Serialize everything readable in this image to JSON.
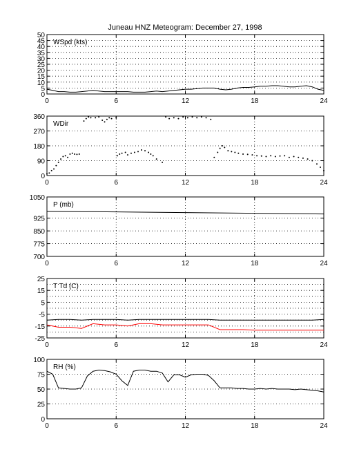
{
  "title": "Juneau HNZ Meteogram:   December 27, 1998",
  "chart_data": [
    {
      "type": "line",
      "label": "WSpd (kts)",
      "x": [
        0,
        0.5,
        1,
        1.5,
        2,
        2.5,
        3,
        3.5,
        4,
        4.5,
        5,
        5.5,
        6,
        6.5,
        7,
        7.5,
        8,
        8.5,
        9,
        9.5,
        10,
        10.5,
        11,
        11.5,
        12,
        12.5,
        13,
        13.5,
        14,
        14.5,
        15,
        15.5,
        16,
        16.5,
        17,
        17.5,
        18,
        18.5,
        19,
        19.5,
        20,
        20.5,
        21,
        21.5,
        22,
        22.5,
        23,
        23.5,
        24
      ],
      "series": [
        {
          "values": [
            4,
            3,
            2,
            2,
            1.5,
            1.5,
            2,
            2.5,
            3,
            2.5,
            2,
            2,
            2,
            2,
            2,
            1.5,
            1.5,
            1.5,
            2,
            2.5,
            2,
            2.5,
            3,
            3.5,
            4,
            4,
            4.5,
            5,
            5,
            5,
            4,
            3.5,
            4,
            5,
            5.5,
            5.5,
            6,
            6.5,
            6.5,
            7,
            7,
            6.5,
            6,
            6,
            6.5,
            7,
            6,
            4,
            3
          ],
          "color": "#000000"
        }
      ],
      "ylim": [
        0,
        50
      ],
      "xlim": [
        0,
        24
      ],
      "yticks": [
        0,
        5,
        10,
        15,
        20,
        25,
        30,
        35,
        40,
        45,
        50
      ],
      "xticks": [
        0,
        6,
        12,
        18,
        24
      ],
      "grid": true
    },
    {
      "type": "scatter",
      "label": "WDir",
      "series": [
        {
          "points": [
            [
              0,
              10
            ],
            [
              0.2,
              15
            ],
            [
              0.4,
              30
            ],
            [
              0.6,
              40
            ],
            [
              0.8,
              60
            ],
            [
              1,
              80
            ],
            [
              1.2,
              100
            ],
            [
              1.4,
              115
            ],
            [
              1.6,
              120
            ],
            [
              1.8,
              110
            ],
            [
              2,
              130
            ],
            [
              2.2,
              135
            ],
            [
              2.4,
              130
            ],
            [
              2.6,
              128
            ],
            [
              2.8,
              130
            ],
            [
              3.2,
              330
            ],
            [
              3.4,
              345
            ],
            [
              3.6,
              355
            ],
            [
              3.8,
              350
            ],
            [
              4.2,
              350
            ],
            [
              4.5,
              355
            ],
            [
              4.8,
              335
            ],
            [
              5,
              325
            ],
            [
              5.2,
              340
            ],
            [
              5.4,
              350
            ],
            [
              5.6,
              345
            ],
            [
              6,
              350
            ],
            [
              6.1,
              120
            ],
            [
              6.3,
              130
            ],
            [
              6.5,
              135
            ],
            [
              6.8,
              140
            ],
            [
              7,
              125
            ],
            [
              7.3,
              135
            ],
            [
              7.6,
              140
            ],
            [
              7.9,
              145
            ],
            [
              8.2,
              155
            ],
            [
              8.5,
              150
            ],
            [
              8.8,
              140
            ],
            [
              9,
              130
            ],
            [
              9.2,
              120
            ],
            [
              9.5,
              100
            ],
            [
              10,
              80
            ],
            [
              10.3,
              355
            ],
            [
              10.6,
              345
            ],
            [
              11,
              350
            ],
            [
              11.4,
              345
            ],
            [
              11.8,
              355
            ],
            [
              12.2,
              350
            ],
            [
              12.6,
              355
            ],
            [
              13,
              350
            ],
            [
              13.4,
              355
            ],
            [
              13.8,
              350
            ],
            [
              14.2,
              340
            ],
            [
              14.5,
              110
            ],
            [
              14.8,
              140
            ],
            [
              15,
              165
            ],
            [
              15.2,
              180
            ],
            [
              15.4,
              170
            ],
            [
              15.7,
              150
            ],
            [
              16,
              145
            ],
            [
              16.3,
              140
            ],
            [
              16.6,
              135
            ],
            [
              17,
              130
            ],
            [
              17.4,
              128
            ],
            [
              17.8,
              125
            ],
            [
              18.2,
              120
            ],
            [
              18.6,
              118
            ],
            [
              19,
              115
            ],
            [
              19.4,
              120
            ],
            [
              19.8,
              115
            ],
            [
              20.2,
              118
            ],
            [
              20.6,
              120
            ],
            [
              21,
              110
            ],
            [
              21.4,
              115
            ],
            [
              21.8,
              110
            ],
            [
              22.2,
              105
            ],
            [
              22.6,
              100
            ],
            [
              23,
              90
            ],
            [
              23.4,
              70
            ],
            [
              23.7,
              50
            ],
            [
              24,
              30
            ]
          ],
          "color": "#000000"
        }
      ],
      "ylim": [
        0,
        360
      ],
      "xlim": [
        0,
        24
      ],
      "yticks": [
        0,
        90,
        180,
        270,
        360
      ],
      "xticks": [
        0,
        6,
        12,
        18,
        24
      ],
      "grid": true
    },
    {
      "type": "line",
      "label": "P (mb)",
      "x": [
        0,
        6,
        12,
        18,
        24
      ],
      "series": [
        {
          "values": [
            965,
            962,
            958,
            954,
            950
          ],
          "color": "#000000"
        }
      ],
      "ylim": [
        700,
        1050
      ],
      "xlim": [
        0,
        24
      ],
      "yticks": [
        700,
        775,
        850,
        925,
        1050
      ],
      "xticks": [
        0,
        6,
        12,
        18,
        24
      ],
      "grid": true
    },
    {
      "type": "line",
      "label": "T Td (C)",
      "x": [
        0,
        1,
        2,
        3,
        4,
        5,
        6,
        7,
        8,
        9,
        10,
        11,
        12,
        13,
        14,
        15,
        16,
        17,
        18,
        19,
        20,
        21,
        22,
        23,
        24
      ],
      "series": [
        {
          "values": [
            -10,
            -9.5,
            -9.5,
            -10,
            -9.5,
            -9.5,
            -9.5,
            -10,
            -9.5,
            -9.5,
            -9.5,
            -9.5,
            -9.5,
            -9.5,
            -9.5,
            -10,
            -10,
            -10,
            -10,
            -10,
            -10,
            -10,
            -10,
            -10,
            -9.5
          ],
          "color": "#000000"
        },
        {
          "values": [
            -14,
            -16,
            -16,
            -17,
            -13,
            -14,
            -14,
            -15,
            -13,
            -13,
            -14,
            -14,
            -14,
            -14,
            -14,
            -18,
            -18,
            -18,
            -18.5,
            -18.5,
            -18.5,
            -18.5,
            -18.5,
            -18.5,
            -18.5
          ],
          "color": "#ff0000"
        }
      ],
      "ylim": [
        -25,
        25
      ],
      "xlim": [
        0,
        24
      ],
      "yticks": [
        -25,
        -15,
        -5,
        5,
        15,
        25
      ],
      "extra_yticks": [
        -20,
        -10,
        0,
        10,
        20
      ],
      "xticks": [
        0,
        6,
        12,
        18,
        24
      ],
      "grid": true
    },
    {
      "type": "line",
      "label": "RH (%)",
      "x": [
        0,
        0.5,
        1,
        1.5,
        2,
        2.5,
        3,
        3.5,
        4,
        4.5,
        5,
        5.5,
        6,
        6.5,
        7,
        7.5,
        8,
        8.5,
        9,
        9.5,
        10,
        10.5,
        11,
        11.5,
        12,
        12.5,
        13,
        13.5,
        14,
        14.5,
        15,
        15.5,
        16,
        16.5,
        17,
        17.5,
        18,
        18.5,
        19,
        19.5,
        20,
        20.5,
        21,
        21.5,
        22,
        22.5,
        23,
        23.5,
        24
      ],
      "series": [
        {
          "values": [
            80,
            75,
            52,
            51,
            50,
            50,
            52,
            72,
            80,
            82,
            81,
            79,
            75,
            64,
            56,
            80,
            82,
            82,
            80,
            80,
            77,
            62,
            74,
            74,
            70,
            74,
            75,
            75,
            73,
            64,
            52,
            52,
            52,
            51,
            51,
            50,
            50,
            51,
            50,
            51,
            50,
            50,
            50,
            49,
            50,
            49,
            48,
            47,
            45
          ],
          "color": "#000000"
        }
      ],
      "ylim": [
        0,
        100
      ],
      "xlim": [
        0,
        24
      ],
      "yticks": [
        0,
        25,
        50,
        75,
        100
      ],
      "xticks": [
        0,
        6,
        12,
        18,
        24
      ],
      "grid": true
    }
  ]
}
